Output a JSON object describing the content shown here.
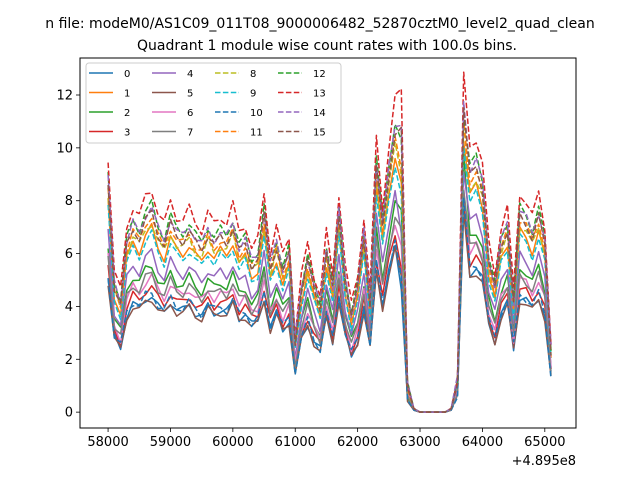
{
  "suptitle": "n file: modeM0/AS1C09_011T08_9000006482_52870cztM0_level2_quad_clean",
  "chart_data": {
    "type": "line",
    "title": "Quadrant 1 module wise count rates with 100.0s bins.",
    "xlabel": "",
    "ylabel": "",
    "x_offset_label": "+4.895e8",
    "xlim": [
      57550,
      65500
    ],
    "ylim": [
      -0.6,
      13.4
    ],
    "xticks": [
      58000,
      59000,
      60000,
      61000,
      62000,
      63000,
      64000,
      65000
    ],
    "yticks": [
      0,
      2,
      4,
      6,
      8,
      10,
      12
    ],
    "legend_position": "upper left",
    "legend_columns": 4,
    "x": [
      58000,
      58100,
      58200,
      58300,
      58400,
      58500,
      58600,
      58700,
      58800,
      58900,
      59000,
      59100,
      59200,
      59300,
      59400,
      59500,
      59600,
      59700,
      59800,
      59900,
      60000,
      60100,
      60200,
      60300,
      60400,
      60500,
      60600,
      60700,
      60800,
      60900,
      61000,
      61100,
      61200,
      61300,
      61400,
      61500,
      61600,
      61700,
      61800,
      61900,
      62000,
      62100,
      62200,
      62300,
      62400,
      62500,
      62600,
      62700,
      62800,
      62900,
      63000,
      63100,
      63200,
      63300,
      63400,
      63500,
      63600,
      63700,
      63800,
      63900,
      64000,
      64100,
      64200,
      64300,
      64400,
      64500,
      64600,
      64700,
      64800,
      64900,
      65000,
      65100
    ],
    "series": [
      {
        "name": "0",
        "color": "#1f77b4",
        "dash": "solid",
        "level": 3.9,
        "spike": 4.8,
        "peak": 7.8
      },
      {
        "name": "1",
        "color": "#ff7f0e",
        "dash": "solid",
        "level": 6.1,
        "spike": 8.6,
        "peak": 10.4
      },
      {
        "name": "2",
        "color": "#2ca02c",
        "dash": "solid",
        "level": 4.9,
        "spike": 7.6,
        "peak": 9.6
      },
      {
        "name": "3",
        "color": "#d62728",
        "dash": "solid",
        "level": 4.2,
        "spike": 5.6,
        "peak": 8.2
      },
      {
        "name": "4",
        "color": "#9467bd",
        "dash": "solid",
        "level": 5.3,
        "spike": 6.6,
        "peak": 9.2
      },
      {
        "name": "5",
        "color": "#8c564b",
        "dash": "solid",
        "level": 3.8,
        "spike": 5.2,
        "peak": 7.4
      },
      {
        "name": "6",
        "color": "#e377c2",
        "dash": "solid",
        "level": 4.5,
        "spike": 6.4,
        "peak": 8.6
      },
      {
        "name": "7",
        "color": "#7f7f7f",
        "dash": "solid",
        "level": 4.6,
        "spike": 6.8,
        "peak": 8.4
      },
      {
        "name": "8",
        "color": "#bcbd22",
        "dash": "dashed",
        "level": 6.3,
        "spike": 9.1,
        "peak": 10.8
      },
      {
        "name": "9",
        "color": "#17becf",
        "dash": "dashed",
        "level": 5.9,
        "spike": 8.2,
        "peak": 10.2
      },
      {
        "name": "10",
        "color": "#1f77b4",
        "dash": "dashed",
        "level": 4.0,
        "spike": 5.0,
        "peak": 8.0
      },
      {
        "name": "11",
        "color": "#ff7f0e",
        "dash": "dashed",
        "level": 6.5,
        "spike": 9.4,
        "peak": 11.0
      },
      {
        "name": "12",
        "color": "#2ca02c",
        "dash": "dashed",
        "level": 6.9,
        "spike": 10.2,
        "peak": 11.4
      },
      {
        "name": "13",
        "color": "#d62728",
        "dash": "dashed",
        "level": 7.4,
        "spike": 12.2,
        "peak": 12.7
      },
      {
        "name": "14",
        "color": "#9467bd",
        "dash": "dashed",
        "level": 6.8,
        "spike": 11.0,
        "peak": 11.8
      },
      {
        "name": "15",
        "color": "#8c564b",
        "dash": "dashed",
        "level": 6.6,
        "spike": 10.6,
        "peak": 11.6
      }
    ]
  }
}
